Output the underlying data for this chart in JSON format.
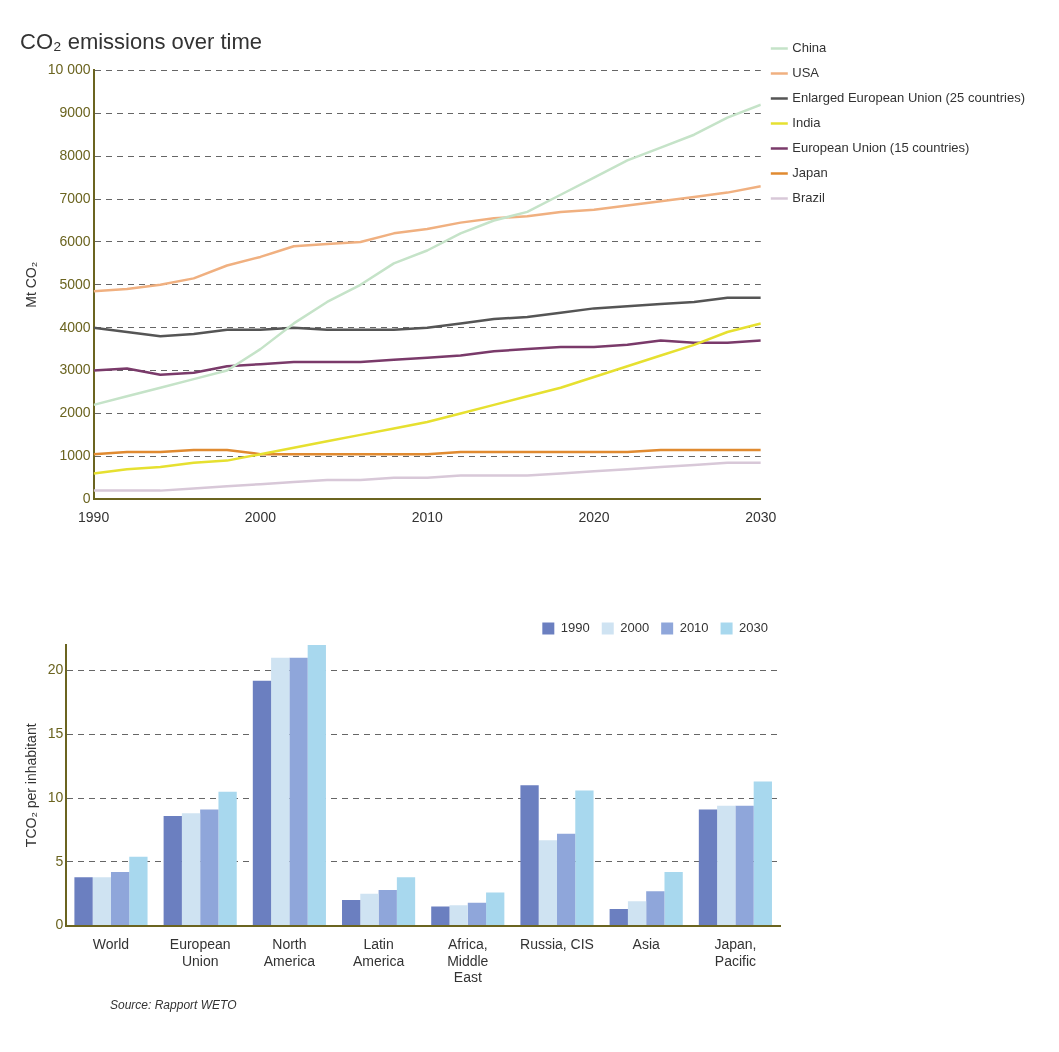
{
  "chart_data": [
    {
      "type": "line",
      "title": "CO₂ emissions over time",
      "ylabel": "Mt CO₂",
      "x": [
        1990,
        1992,
        1994,
        1996,
        1998,
        2000,
        2002,
        2004,
        2006,
        2008,
        2010,
        2012,
        2014,
        2016,
        2018,
        2020,
        2022,
        2024,
        2026,
        2028,
        2030
      ],
      "xlim": [
        1990,
        2030
      ],
      "xticks": [
        1990,
        2000,
        2010,
        2020,
        2030
      ],
      "ylim": [
        0,
        10000
      ],
      "yticks": [
        0,
        1000,
        2000,
        3000,
        4000,
        5000,
        6000,
        7000,
        8000,
        9000,
        {
          "value": 10000,
          "label": "10 000"
        }
      ],
      "grid": "y",
      "legend": "right top",
      "marker": "none",
      "line_style": "solid",
      "series": [
        {
          "name": "China",
          "color": "#c5e3c8",
          "values": [
            2200,
            2400,
            2600,
            2800,
            3000,
            3500,
            4100,
            4600,
            5000,
            5500,
            5800,
            6200,
            6500,
            6700,
            7100,
            7500,
            7900,
            8200,
            8500,
            8900,
            9200
          ]
        },
        {
          "name": "USA",
          "color": "#f0b080",
          "values": [
            4850,
            4900,
            5000,
            5150,
            5450,
            5650,
            5900,
            5950,
            6000,
            6200,
            6300,
            6450,
            6550,
            6600,
            6700,
            6750,
            6850,
            6950,
            7050,
            7150,
            7300
          ]
        },
        {
          "name": "Enlarged European Union (25 countries)",
          "color": "#555555",
          "values": [
            4000,
            3900,
            3800,
            3850,
            3950,
            3950,
            4000,
            3950,
            3950,
            3950,
            4000,
            4100,
            4200,
            4250,
            4350,
            4450,
            4500,
            4550,
            4600,
            4700,
            4700
          ]
        },
        {
          "name": "India",
          "color": "#e6e030",
          "values": [
            600,
            700,
            750,
            850,
            900,
            1050,
            1200,
            1350,
            1500,
            1650,
            1800,
            2000,
            2200,
            2400,
            2600,
            2850,
            3100,
            3350,
            3600,
            3900,
            4100
          ]
        },
        {
          "name": "European Union (15 countries)",
          "color": "#7a3a6a",
          "values": [
            3000,
            3050,
            2900,
            2950,
            3100,
            3150,
            3200,
            3200,
            3200,
            3250,
            3300,
            3350,
            3450,
            3500,
            3550,
            3550,
            3600,
            3700,
            3650,
            3650,
            3700
          ]
        },
        {
          "name": "Japan",
          "color": "#e08a30",
          "values": [
            1050,
            1100,
            1100,
            1150,
            1150,
            1050,
            1050,
            1050,
            1050,
            1050,
            1050,
            1100,
            1100,
            1100,
            1100,
            1100,
            1100,
            1150,
            1150,
            1150,
            1150
          ]
        },
        {
          "name": "Brazil",
          "color": "#d8c8d8",
          "values": [
            200,
            200,
            200,
            250,
            300,
            350,
            400,
            450,
            450,
            500,
            500,
            550,
            550,
            550,
            600,
            650,
            700,
            750,
            800,
            850,
            850
          ]
        }
      ]
    },
    {
      "type": "bar",
      "ylabel": "TCO₂ per inhabitant",
      "categories": [
        "World",
        "European\nUnion",
        "North\nAmerica",
        "Latin\nAmerica",
        "Africa,\nMiddle\nEast",
        "Russia, CIS",
        "Asia",
        "Japan,\nPacific"
      ],
      "ylim": [
        0,
        22
      ],
      "yticks": [
        0,
        5,
        10,
        15,
        20
      ],
      "grid": "y",
      "legend": "top right",
      "annotations": [
        "Source: Rapport WETO"
      ],
      "series": [
        {
          "name": "1990",
          "color": "#6b7fc0",
          "values": [
            3.8,
            8.6,
            19.2,
            2.0,
            1.5,
            11.0,
            1.3,
            9.1
          ]
        },
        {
          "name": "2000",
          "color": "#cfe3f2",
          "values": [
            3.8,
            8.8,
            21,
            2.5,
            1.6,
            6.7,
            1.9,
            9.4
          ]
        },
        {
          "name": "2010",
          "color": "#8fa6da",
          "values": [
            4.2,
            9.1,
            21,
            2.8,
            1.8,
            7.2,
            2.7,
            9.4
          ]
        },
        {
          "name": "2030",
          "color": "#a8d8ee",
          "values": [
            5.4,
            10.5,
            22,
            3.8,
            2.6,
            10.6,
            4.2,
            11.3
          ]
        }
      ]
    }
  ]
}
